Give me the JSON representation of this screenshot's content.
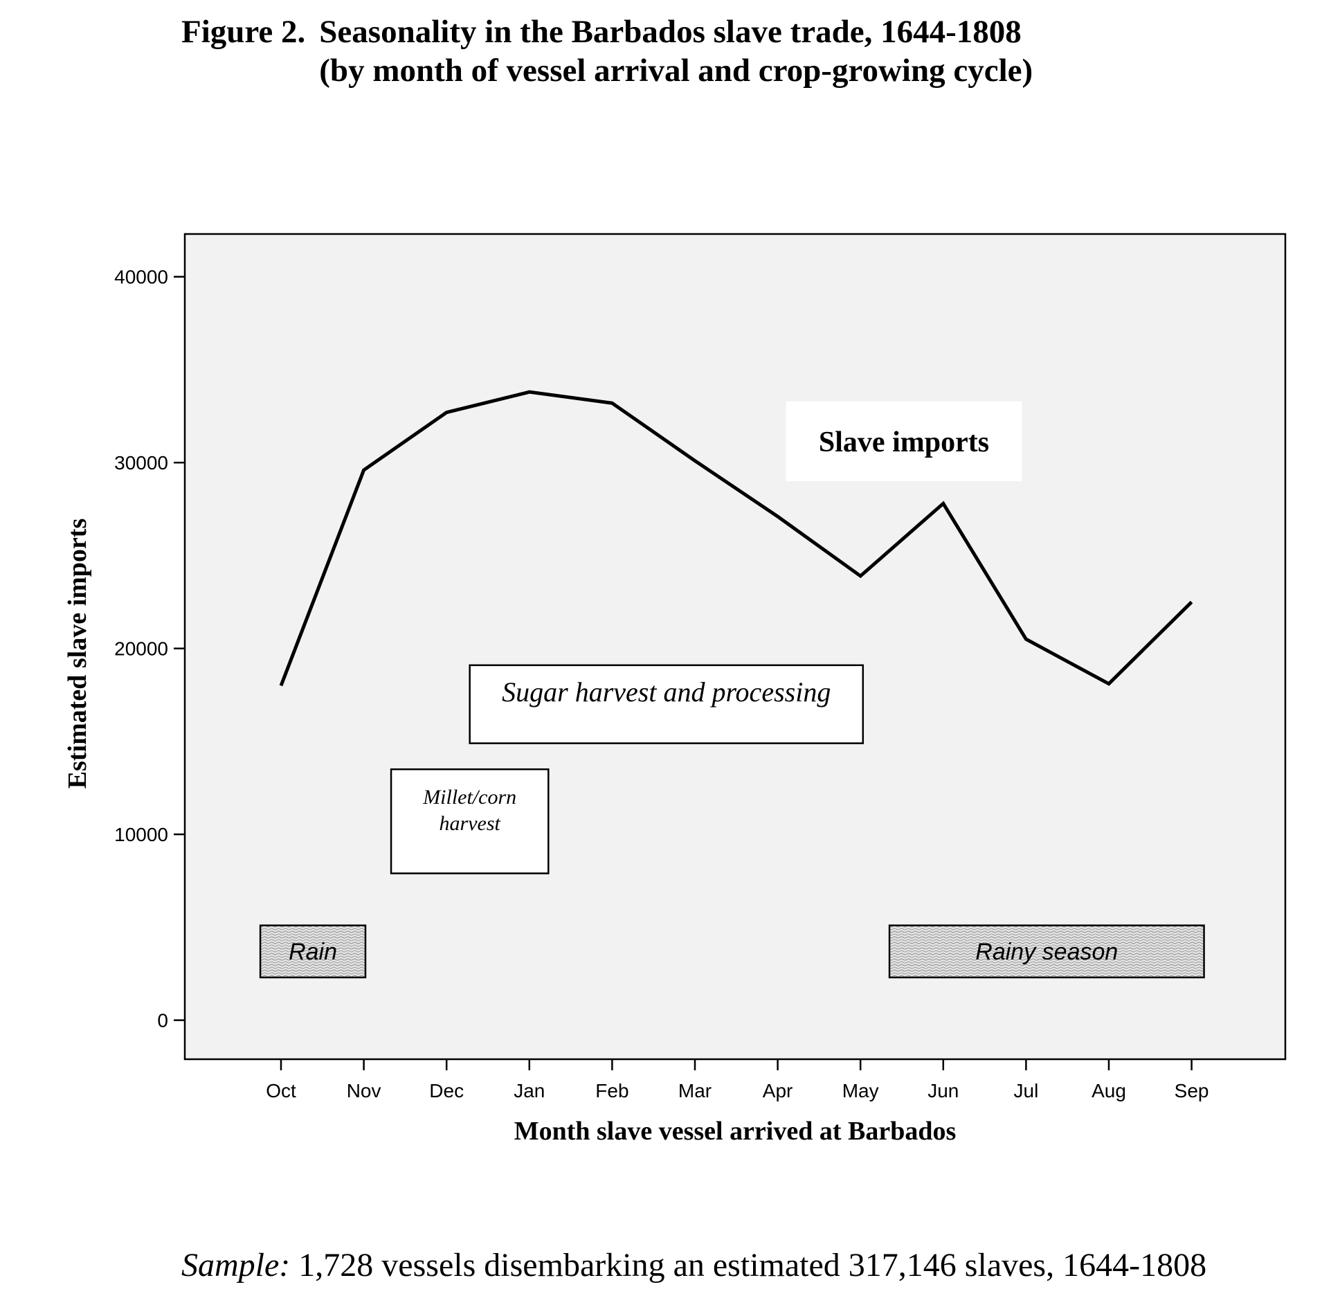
{
  "figure": {
    "number_label": "Figure 2.",
    "title_line1": "Seasonality in the Barbados slave trade, 1644-1808",
    "title_line2": "(by month of vessel arrival and crop-growing cycle)"
  },
  "sample_note": {
    "label": "Sample:",
    "text": " 1,728 vessels disembarking an estimated 317,146 slaves, 1644-1808"
  },
  "chart_data": {
    "type": "line",
    "xlabel": "Month slave vessel arrived at Barbados",
    "ylabel": "Estimated slave imports",
    "categories": [
      "Oct",
      "Nov",
      "Dec",
      "Jan",
      "Feb",
      "Mar",
      "Apr",
      "May",
      "Jun",
      "Jul",
      "Aug",
      "Sep"
    ],
    "series": [
      {
        "name": "Slave imports",
        "values": [
          18000,
          29600,
          32700,
          33800,
          33200,
          30100,
          27100,
          23900,
          27800,
          20500,
          18100,
          22500
        ]
      }
    ],
    "ylim": [
      -2100,
      42300
    ],
    "yticks": [
      0,
      10000,
      20000,
      30000,
      40000
    ],
    "grid": false,
    "background_color": "#f2f2f2",
    "line_color": "#000000",
    "annotations": [
      {
        "text": "Slave imports",
        "style": "bold",
        "box": "white-no-border",
        "x_range": [
          6.1,
          8.95
        ],
        "y_range": [
          29000,
          33300
        ]
      },
      {
        "text": "Sugar harvest and processing",
        "style": "italic",
        "box": "white-outlined",
        "x_range": [
          2.28,
          7.03
        ],
        "y_range": [
          14900,
          19100
        ]
      },
      {
        "text": "Millet/corn harvest",
        "lines": [
          "Millet/corn",
          "harvest"
        ],
        "style": "italic",
        "box": "white-outlined",
        "x_range": [
          1.33,
          3.23
        ],
        "y_range": [
          7900,
          13500
        ]
      },
      {
        "text": "Rain",
        "style": "italic",
        "box": "hatched",
        "x_range": [
          -0.25,
          1.02
        ],
        "y_range": [
          2300,
          5100
        ]
      },
      {
        "text": "Rainy season",
        "style": "italic",
        "box": "hatched",
        "x_range": [
          7.35,
          11.15
        ],
        "y_range": [
          2300,
          5100
        ]
      }
    ]
  }
}
